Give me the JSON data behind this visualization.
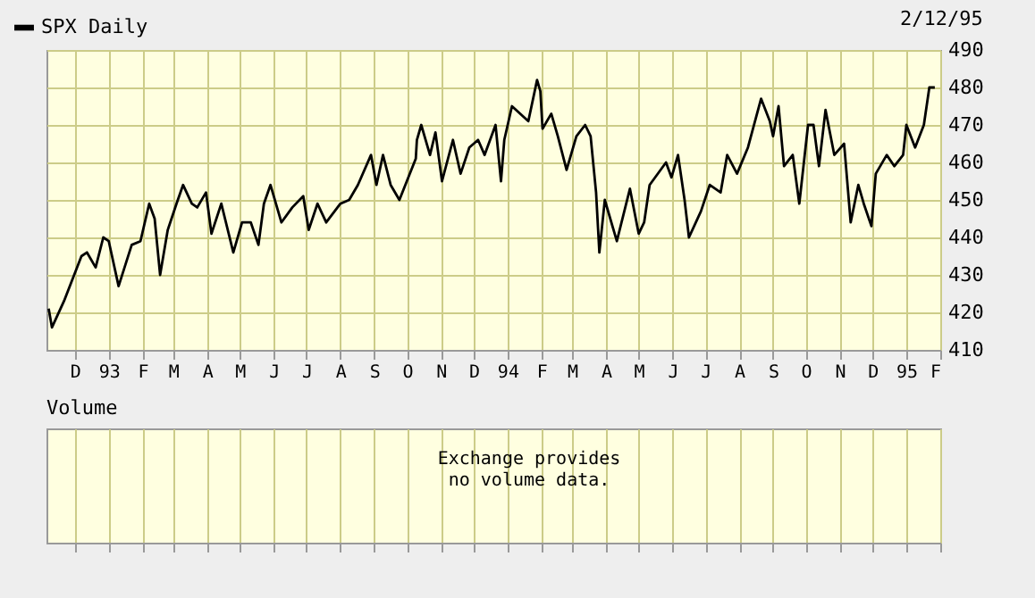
{
  "chart_data": [
    {
      "type": "line",
      "subtitle": "2/12/95",
      "legend": "top left",
      "grid": true,
      "xlim": [
        "1992-11-05",
        "1995-02-01"
      ],
      "ylim": [
        410,
        490
      ],
      "yticks": [
        410,
        420,
        430,
        440,
        450,
        460,
        470,
        480,
        490
      ],
      "xticks": [
        {
          "value": "1992-12-01",
          "label": "D"
        },
        {
          "value": "1993-01-01",
          "label": "93"
        },
        {
          "value": "1993-02-01",
          "label": "F"
        },
        {
          "value": "1993-03-01",
          "label": "M"
        },
        {
          "value": "1993-04-01",
          "label": "A"
        },
        {
          "value": "1993-05-01",
          "label": "M"
        },
        {
          "value": "1993-06-01",
          "label": "J"
        },
        {
          "value": "1993-07-01",
          "label": "J"
        },
        {
          "value": "1993-08-01",
          "label": "A"
        },
        {
          "value": "1993-09-01",
          "label": "S"
        },
        {
          "value": "1993-10-01",
          "label": "O"
        },
        {
          "value": "1993-11-01",
          "label": "N"
        },
        {
          "value": "1993-12-01",
          "label": "D"
        },
        {
          "value": "1994-01-01",
          "label": "94"
        },
        {
          "value": "1994-02-01",
          "label": "F"
        },
        {
          "value": "1994-03-01",
          "label": "M"
        },
        {
          "value": "1994-04-01",
          "label": "A"
        },
        {
          "value": "1994-05-01",
          "label": "M"
        },
        {
          "value": "1994-06-01",
          "label": "J"
        },
        {
          "value": "1994-07-01",
          "label": "J"
        },
        {
          "value": "1994-08-01",
          "label": "A"
        },
        {
          "value": "1994-09-01",
          "label": "S"
        },
        {
          "value": "1994-10-01",
          "label": "O"
        },
        {
          "value": "1994-11-01",
          "label": "N"
        },
        {
          "value": "1994-12-01",
          "label": "D"
        },
        {
          "value": "1995-01-01",
          "label": "95"
        },
        {
          "value": "1995-02-01",
          "label": "F"
        }
      ],
      "series": [
        {
          "name": "SPX Daily",
          "color": "#000000",
          "x": [
            "1992-11-07",
            "1992-11-10",
            "1992-11-21",
            "1992-11-29",
            "1992-12-07",
            "1992-12-12",
            "1992-12-20",
            "1992-12-27",
            "1993-01-01",
            "1993-01-10",
            "1993-01-22",
            "1993-01-30",
            "1993-02-07",
            "1993-02-12",
            "1993-02-17",
            "1993-02-24",
            "1993-03-04",
            "1993-03-10",
            "1993-03-18",
            "1993-03-23",
            "1993-03-31",
            "1993-04-05",
            "1993-04-14",
            "1993-04-25",
            "1993-05-03",
            "1993-05-11",
            "1993-05-18",
            "1993-05-23",
            "1993-05-29",
            "1993-06-08",
            "1993-06-18",
            "1993-06-28",
            "1993-07-03",
            "1993-07-11",
            "1993-07-19",
            "1993-08-01",
            "1993-08-09",
            "1993-08-17",
            "1993-08-29",
            "1993-09-03",
            "1993-09-09",
            "1993-09-16",
            "1993-09-24",
            "1993-10-09",
            "1993-10-10",
            "1993-10-14",
            "1993-10-22",
            "1993-10-27",
            "1993-11-02",
            "1993-11-12",
            "1993-11-19",
            "1993-11-27",
            "1993-12-05",
            "1993-12-11",
            "1993-12-21",
            "1993-12-26",
            "1993-12-29",
            "1994-01-05",
            "1994-01-20",
            "1994-01-28",
            "1994-01-31",
            "1994-02-02",
            "1994-02-10",
            "1994-02-16",
            "1994-02-24",
            "1994-03-05",
            "1994-03-13",
            "1994-03-18",
            "1994-03-23",
            "1994-03-26",
            "1994-03-31",
            "1994-04-11",
            "1994-04-23",
            "1994-05-01",
            "1994-05-06",
            "1994-05-11",
            "1994-05-26",
            "1994-05-31",
            "1994-06-06",
            "1994-06-12",
            "1994-06-16",
            "1994-06-27",
            "1994-07-05",
            "1994-07-15",
            "1994-07-21",
            "1994-07-30",
            "1994-08-09",
            "1994-08-21",
            "1994-08-29",
            "1994-09-01",
            "1994-09-06",
            "1994-09-11",
            "1994-09-19",
            "1994-09-25",
            "1994-10-03",
            "1994-10-08",
            "1994-10-13",
            "1994-10-19",
            "1994-10-27",
            "1994-11-05",
            "1994-11-11",
            "1994-11-18",
            "1994-11-23",
            "1994-11-30",
            "1994-12-04",
            "1994-12-14",
            "1994-12-21",
            "1994-12-29",
            "1995-01-01",
            "1995-01-09",
            "1995-01-17",
            "1995-01-22",
            "1995-01-27"
          ],
          "values": [
            421,
            416,
            423,
            429,
            435,
            436,
            432,
            440,
            439,
            427,
            438,
            439,
            449,
            445,
            430,
            442,
            449,
            454,
            449,
            448,
            452,
            441,
            449,
            436,
            444,
            444,
            438,
            449,
            454,
            444,
            448,
            451,
            442,
            449,
            444,
            449,
            450,
            454,
            462,
            454,
            462,
            454,
            450,
            461,
            466,
            470,
            462,
            468,
            455,
            466,
            457,
            464,
            466,
            462,
            470,
            455,
            466,
            475,
            471,
            482,
            479,
            469,
            473,
            467,
            458,
            467,
            470,
            467,
            452,
            436,
            450,
            439,
            453,
            441,
            444,
            454,
            460,
            456,
            462,
            450,
            440,
            447,
            454,
            452,
            462,
            457,
            464,
            477,
            471,
            467,
            475,
            459,
            462,
            449,
            470,
            470,
            459,
            474,
            462,
            465,
            444,
            454,
            449,
            443,
            457,
            462,
            459,
            462,
            470,
            464,
            470,
            480,
            480
          ]
        }
      ]
    },
    {
      "type": "other",
      "title": "Volume",
      "annotations": [
        "Exchange provides\nno volume data."
      ]
    }
  ]
}
